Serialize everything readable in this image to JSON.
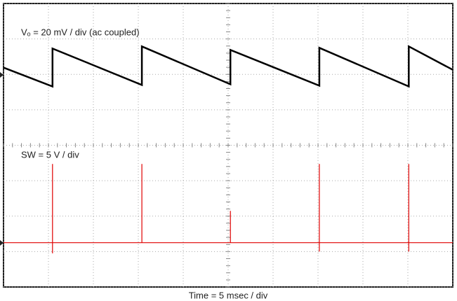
{
  "chart_data": {
    "type": "line",
    "xlabel": "Time = 5 msec / div",
    "xlim": [
      0,
      10
    ],
    "ylim": [
      -4,
      4
    ],
    "xticks": [
      0,
      1,
      2,
      3,
      4,
      5,
      6,
      7,
      8,
      9,
      10
    ],
    "yticks": [
      -4,
      -3,
      -2,
      -1,
      0,
      1,
      2,
      3,
      4
    ],
    "grid": true,
    "series": [
      {
        "name": "Vₒ = 20 mV / div (ac coupled)",
        "color": "#000000",
        "x": [
          0,
          1.09,
          1.09,
          3.08,
          3.08,
          5.05,
          5.05,
          7.03,
          7.03,
          9.02,
          9.02,
          10
        ],
        "values": [
          2.19,
          1.66,
          2.73,
          1.7,
          2.79,
          1.72,
          2.69,
          1.68,
          2.75,
          1.66,
          2.79,
          2.13
        ]
      },
      {
        "name": "SW = 5 V / div",
        "color": "#e00000",
        "x": [
          0,
          1.09,
          1.09,
          1.09,
          1.09,
          3.08,
          3.08,
          3.08,
          5.05,
          5.05,
          5.05,
          7.03,
          7.03,
          7.03,
          7.03,
          9.02,
          9.02,
          9.02,
          9.02,
          10
        ],
        "values": [
          -2.75,
          -2.75,
          -0.53,
          -3.05,
          -2.75,
          -2.75,
          -0.53,
          -2.75,
          -2.75,
          -1.85,
          -2.75,
          -2.75,
          -0.53,
          -3.0,
          -2.75,
          -2.75,
          -0.53,
          -3.0,
          -2.75,
          -2.75
        ]
      }
    ]
  }
}
